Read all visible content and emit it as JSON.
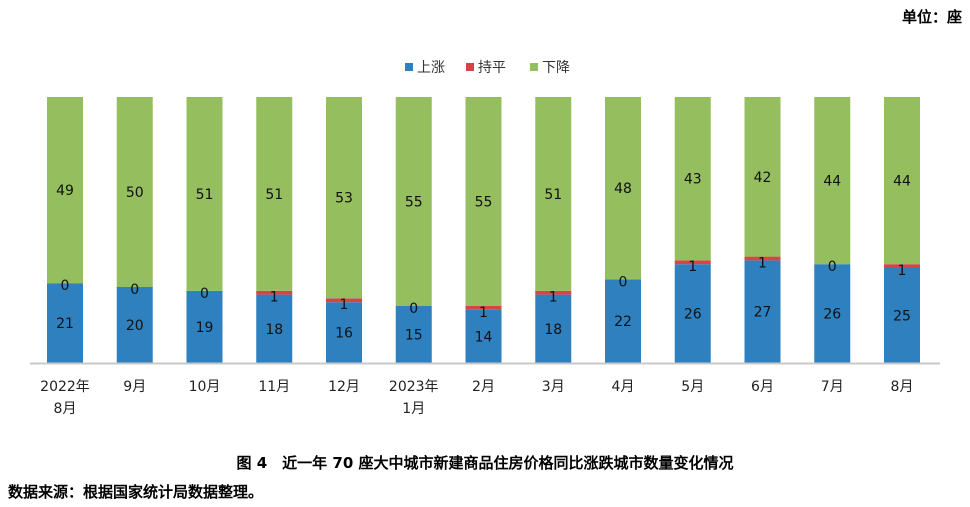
{
  "unit_label": "单位：座",
  "caption": "图 4　近一年 70 座大中城市新建商品住房价格同比涨跌城市数量变化情况",
  "source": "数据来源：根据国家统计局数据整理。",
  "chart_data": {
    "type": "bar",
    "stacked": true,
    "title": "",
    "xlabel": "",
    "ylabel": "",
    "ylim": [
      0,
      70
    ],
    "grid": false,
    "legend_position": "top-center",
    "categories": [
      [
        "2022年",
        "8月"
      ],
      [
        "9月"
      ],
      [
        "10月"
      ],
      [
        "11月"
      ],
      [
        "12月"
      ],
      [
        "2023年",
        "1月"
      ],
      [
        "2月"
      ],
      [
        "3月"
      ],
      [
        "4月"
      ],
      [
        "5月"
      ],
      [
        "6月"
      ],
      [
        "7月"
      ],
      [
        "8月"
      ]
    ],
    "series": [
      {
        "name": "上涨",
        "color": "#2e80be",
        "values": [
          21,
          20,
          19,
          18,
          16,
          15,
          14,
          18,
          22,
          26,
          27,
          26,
          25
        ]
      },
      {
        "name": "持平",
        "color": "#d84444",
        "values": [
          0,
          0,
          0,
          1,
          1,
          0,
          1,
          1,
          0,
          1,
          1,
          0,
          1
        ]
      },
      {
        "name": "下降",
        "color": "#95be5f",
        "values": [
          49,
          50,
          51,
          51,
          53,
          55,
          55,
          51,
          48,
          43,
          42,
          44,
          44
        ]
      }
    ]
  }
}
